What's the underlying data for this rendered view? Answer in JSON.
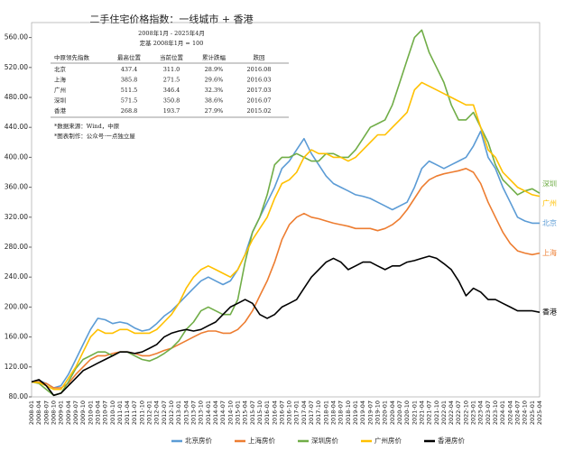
{
  "chart_data": {
    "type": "line",
    "title": "二手住宅价格指数：一线城市 + 香港",
    "subtitle": "2008年1月 - 2025年4月",
    "base_note": "定基 2008年1月 = 100",
    "notes": [
      "*数据来源：Wind，中原",
      "*图表制作：公众号·一点独立屋"
    ],
    "table": {
      "header": [
        "中原领先指数",
        "最高位置",
        "当前位置",
        "累计跌幅",
        "跌回"
      ],
      "rows": [
        [
          "北京",
          "437.4",
          "311.0",
          "28.9%",
          "2016.08"
        ],
        [
          "上海",
          "385.8",
          "271.5",
          "29.6%",
          "2016.03"
        ],
        [
          "广州",
          "511.5",
          "346.4",
          "32.3%",
          "2017.03"
        ],
        [
          "深圳",
          "571.5",
          "350.8",
          "38.6%",
          "2016.07"
        ],
        [
          "香港",
          "268.8",
          "193.7",
          "27.9%",
          "2015.02"
        ]
      ]
    },
    "categories": [
      "2008-01",
      "2008-04",
      "2008-07",
      "2008-10",
      "2009-01",
      "2009-04",
      "2009-07",
      "2009-10",
      "2010-01",
      "2010-04",
      "2010-07",
      "2010-10",
      "2011-01",
      "2011-04",
      "2011-07",
      "2011-10",
      "2012-01",
      "2012-04",
      "2012-07",
      "2012-10",
      "2013-01",
      "2013-04",
      "2013-07",
      "2013-10",
      "2014-01",
      "2014-04",
      "2014-07",
      "2014-10",
      "2015-01",
      "2015-04",
      "2015-07",
      "2015-10",
      "2016-01",
      "2016-04",
      "2016-07",
      "2016-10",
      "2017-01",
      "2017-04",
      "2017-07",
      "2017-10",
      "2018-01",
      "2018-04",
      "2018-07",
      "2018-10",
      "2019-01",
      "2019-04",
      "2019-07",
      "2019-10",
      "2020-01",
      "2020-04",
      "2020-07",
      "2020-10",
      "2021-01",
      "2021-04",
      "2021-07",
      "2021-10",
      "2022-01",
      "2022-04",
      "2022-07",
      "2022-10",
      "2023-01",
      "2023-04",
      "2023-07",
      "2023-10",
      "2024-01",
      "2024-04",
      "2024-07",
      "2024-10",
      "2025-01",
      "2025-04"
    ],
    "series": [
      {
        "name": "北京房价",
        "end_label": "北京",
        "color": "#5b9bd5",
        "values": [
          100,
          102,
          98,
          92,
          95,
          110,
          130,
          150,
          170,
          185,
          183,
          178,
          180,
          178,
          172,
          168,
          170,
          178,
          188,
          195,
          205,
          215,
          225,
          235,
          240,
          235,
          230,
          235,
          250,
          270,
          300,
          320,
          340,
          360,
          385,
          395,
          410,
          425,
          405,
          390,
          375,
          365,
          360,
          355,
          350,
          348,
          345,
          340,
          335,
          330,
          335,
          340,
          360,
          385,
          395,
          390,
          385,
          390,
          395,
          400,
          415,
          435,
          400,
          385,
          360,
          340,
          320,
          315,
          312,
          312
        ]
      },
      {
        "name": "上海房价",
        "end_label": "上海",
        "color": "#ed7d31",
        "values": [
          100,
          100,
          98,
          92,
          92,
          98,
          110,
          120,
          130,
          135,
          135,
          138,
          140,
          140,
          138,
          135,
          135,
          138,
          142,
          145,
          150,
          155,
          160,
          165,
          168,
          168,
          165,
          165,
          170,
          180,
          195,
          215,
          235,
          260,
          290,
          310,
          320,
          325,
          320,
          318,
          315,
          312,
          310,
          308,
          305,
          305,
          305,
          302,
          305,
          310,
          318,
          330,
          345,
          360,
          370,
          375,
          378,
          380,
          382,
          385,
          380,
          365,
          340,
          320,
          300,
          285,
          275,
          272,
          270,
          272
        ]
      },
      {
        "name": "深圳房价",
        "end_label": "深圳",
        "color": "#70ad47",
        "values": [
          100,
          98,
          90,
          82,
          85,
          100,
          118,
          130,
          135,
          140,
          140,
          135,
          140,
          140,
          135,
          130,
          128,
          132,
          138,
          145,
          155,
          170,
          180,
          195,
          200,
          195,
          190,
          190,
          210,
          260,
          300,
          320,
          350,
          390,
          400,
          400,
          405,
          400,
          395,
          395,
          405,
          405,
          400,
          400,
          410,
          425,
          440,
          445,
          450,
          470,
          500,
          530,
          560,
          570,
          540,
          520,
          500,
          470,
          450,
          450,
          460,
          440,
          420,
          390,
          370,
          360,
          350,
          355,
          358,
          352
        ]
      },
      {
        "name": "广州房价",
        "end_label": "广州",
        "color": "#ffc000",
        "values": [
          100,
          99,
          95,
          90,
          90,
          105,
          120,
          140,
          160,
          170,
          165,
          165,
          170,
          170,
          165,
          165,
          165,
          170,
          180,
          190,
          205,
          225,
          240,
          250,
          255,
          250,
          245,
          240,
          250,
          270,
          290,
          305,
          320,
          345,
          365,
          370,
          380,
          400,
          410,
          405,
          405,
          400,
          400,
          395,
          400,
          410,
          420,
          430,
          430,
          440,
          450,
          460,
          490,
          500,
          495,
          490,
          485,
          480,
          475,
          470,
          470,
          440,
          410,
          400,
          380,
          370,
          360,
          355,
          350,
          348
        ]
      },
      {
        "name": "香港房价",
        "end_label": "香港",
        "color": "#000000",
        "values": [
          100,
          103,
          95,
          82,
          85,
          95,
          105,
          115,
          120,
          125,
          130,
          135,
          140,
          140,
          138,
          140,
          145,
          150,
          160,
          165,
          168,
          170,
          168,
          170,
          175,
          180,
          190,
          200,
          205,
          210,
          205,
          190,
          185,
          190,
          200,
          205,
          210,
          225,
          240,
          250,
          260,
          265,
          260,
          250,
          255,
          260,
          260,
          255,
          250,
          255,
          255,
          260,
          262,
          265,
          268,
          265,
          258,
          250,
          235,
          215,
          225,
          220,
          210,
          210,
          205,
          200,
          195,
          195,
          195,
          193
        ]
      }
    ],
    "ylim": [
      80,
      580
    ],
    "yticks": [
      {
        "value": 80,
        "label": "80.00"
      },
      {
        "value": 120,
        "label": "120.00"
      },
      {
        "value": 160,
        "label": "160.00"
      },
      {
        "value": 200,
        "label": "200.00"
      },
      {
        "value": 240,
        "label": "240.00"
      },
      {
        "value": 280,
        "label": "280.00"
      },
      {
        "value": 320,
        "label": "320.00"
      },
      {
        "value": 360,
        "label": "360.00"
      },
      {
        "value": 400,
        "label": "400.00"
      },
      {
        "value": 440,
        "label": "440.00"
      },
      {
        "value": 480,
        "label": "480.00"
      },
      {
        "value": 520,
        "label": "520.00"
      },
      {
        "value": 560,
        "label": "560.00"
      }
    ]
  }
}
